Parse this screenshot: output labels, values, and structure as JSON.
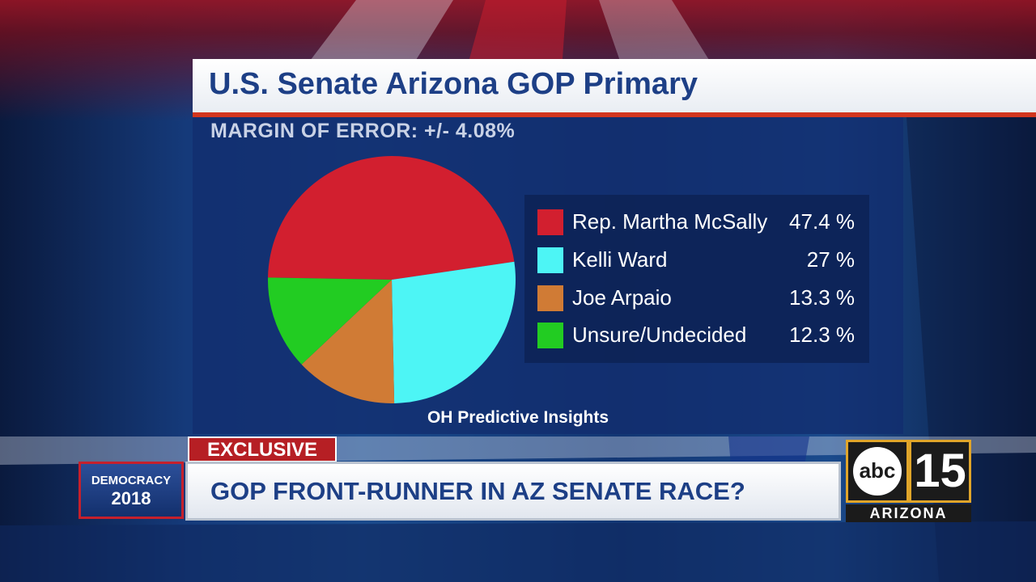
{
  "title": "U.S. Senate Arizona GOP Primary",
  "margin_of_error": "MARGIN OF ERROR: +/- 4.08%",
  "source": "OH Predictive Insights",
  "chart_data": {
    "type": "pie",
    "slices": [
      {
        "label": "Rep. Martha McSally",
        "value": 47.4,
        "display": "47.4 %",
        "color": "#d21f2f"
      },
      {
        "label": "Kelli Ward",
        "value": 27,
        "display": "27 %",
        "color": "#4df5f5"
      },
      {
        "label": "Joe Arpaio",
        "value": 13.3,
        "display": "13.3 %",
        "color": "#d07b35"
      },
      {
        "label": "Unsure/Undecided",
        "value": 12.3,
        "display": "12.3 %",
        "color": "#22cc22"
      }
    ],
    "legend_position": "right"
  },
  "lower_third": {
    "tag": "EXCLUSIVE",
    "headline": "GOP FRONT-RUNNER IN AZ SENATE RACE?",
    "badge_line1": "DEMOCRACY",
    "badge_line2": "2018"
  },
  "logo": {
    "abc": "abc",
    "channel": "15",
    "region": "ARIZONA"
  },
  "colors": {
    "title_text": "#1d3f86",
    "accent_red": "#d2361e"
  }
}
